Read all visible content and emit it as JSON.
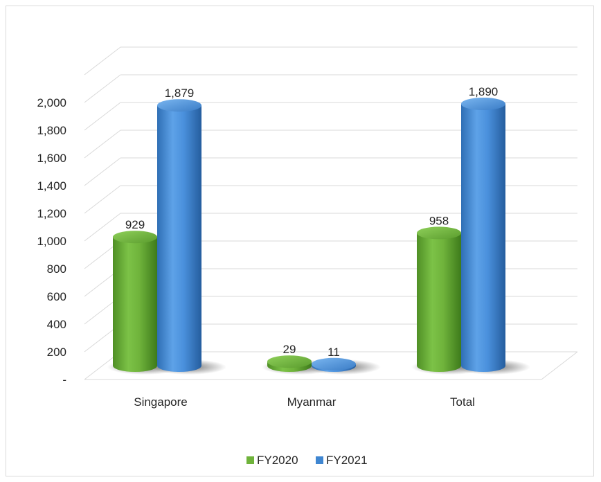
{
  "chart_data": {
    "type": "bar",
    "style": "3d-cylinder",
    "categories": [
      "Singapore",
      "Myanmar",
      "Total"
    ],
    "series": [
      {
        "name": "FY2020",
        "values": [
          929,
          29,
          958
        ],
        "color": "#6fb33b",
        "labels": [
          "929",
          "29",
          "958"
        ]
      },
      {
        "name": "FY2021",
        "values": [
          1879,
          11,
          1890
        ],
        "color": "#3f86d1",
        "labels": [
          "1,879",
          "11",
          "1,890"
        ]
      }
    ],
    "ylim": [
      0,
      2000
    ],
    "y_ticks": [
      {
        "value": 0,
        "label": "-"
      },
      {
        "value": 200,
        "label": "200"
      },
      {
        "value": 400,
        "label": "400"
      },
      {
        "value": 600,
        "label": "600"
      },
      {
        "value": 800,
        "label": "800"
      },
      {
        "value": 1000,
        "label": "1,000"
      },
      {
        "value": 1200,
        "label": "1,200"
      },
      {
        "value": 1400,
        "label": "1,400"
      },
      {
        "value": 1600,
        "label": "1,600"
      },
      {
        "value": 1800,
        "label": "1,800"
      },
      {
        "value": 2000,
        "label": "2,000"
      }
    ],
    "grid": true,
    "legend_position": "bottom",
    "title": "",
    "xlabel": "",
    "ylabel": ""
  }
}
